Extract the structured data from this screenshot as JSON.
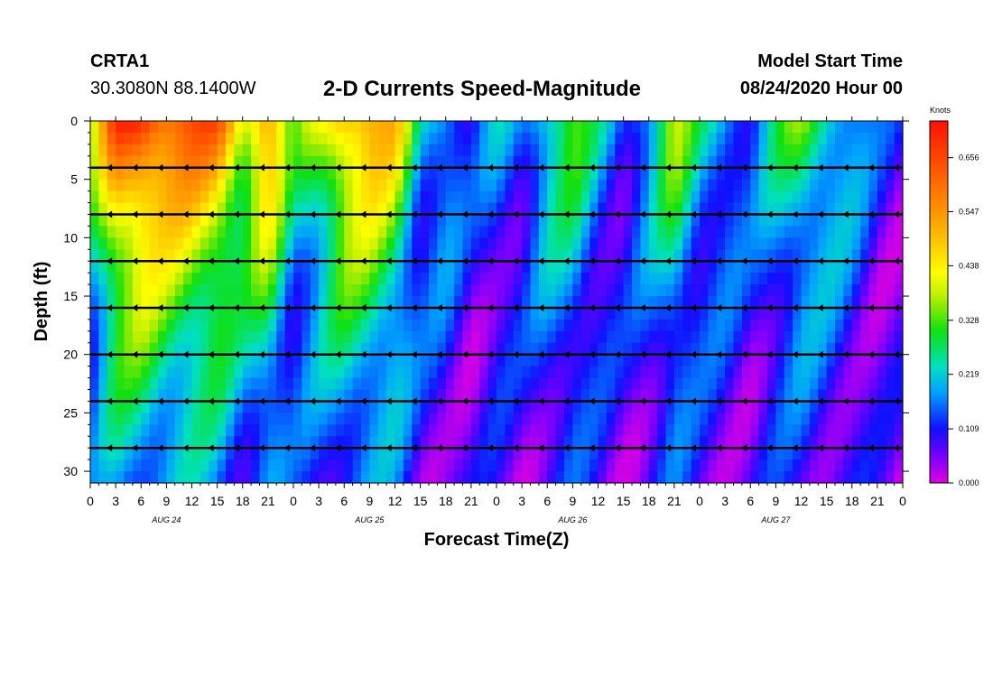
{
  "header": {
    "station": "CRTA1",
    "coordinates": "30.3080N 88.1400W",
    "title": "2-D Currents Speed-Magnitude",
    "model_start_label": "Model Start Time",
    "model_start_value": "08/24/2020 Hour 00"
  },
  "chart_data": {
    "type": "heatmap",
    "title": "2-D Currents Speed-Magnitude",
    "xlabel": "Forecast Time(Z)",
    "ylabel": "Depth (ft)",
    "x_ticks": [
      "0",
      "3",
      "6",
      "9",
      "12",
      "15",
      "18",
      "21",
      "0",
      "3",
      "6",
      "9",
      "12",
      "15",
      "18",
      "21",
      "0",
      "3",
      "6",
      "9",
      "12",
      "15",
      "18",
      "21",
      "0",
      "3",
      "6",
      "9",
      "12",
      "15",
      "18",
      "21",
      "0"
    ],
    "x_range_hours": [
      0,
      96
    ],
    "day_labels": [
      "AUG 24",
      "AUG 25",
      "AUG 26",
      "AUG 27"
    ],
    "y_ticks": [
      "0",
      "5",
      "10",
      "15",
      "20",
      "25",
      "30"
    ],
    "ylim": [
      0,
      31
    ],
    "colorbar": {
      "unit": "Knots",
      "ticks": [
        "0.656",
        "0.547",
        "0.438",
        "0.328",
        "0.219",
        "0.109",
        "0.000"
      ],
      "range": [
        0,
        0.73
      ]
    },
    "vector_depths_ft": [
      4,
      8,
      12,
      16,
      20,
      24,
      28
    ],
    "surface_speed_profile_knots": [
      0.3,
      0.62,
      0.68,
      0.62,
      0.6,
      0.58,
      0.4,
      0.55,
      0.25,
      0.35,
      0.5,
      0.52,
      0.45,
      0.18,
      0.2,
      0.08,
      0.15,
      0.12,
      0.25,
      0.3,
      0.18,
      0.1,
      0.2,
      0.35,
      0.2,
      0.18,
      0.12,
      0.22,
      0.3,
      0.25,
      0.18,
      0.08,
      0.05
    ]
  }
}
